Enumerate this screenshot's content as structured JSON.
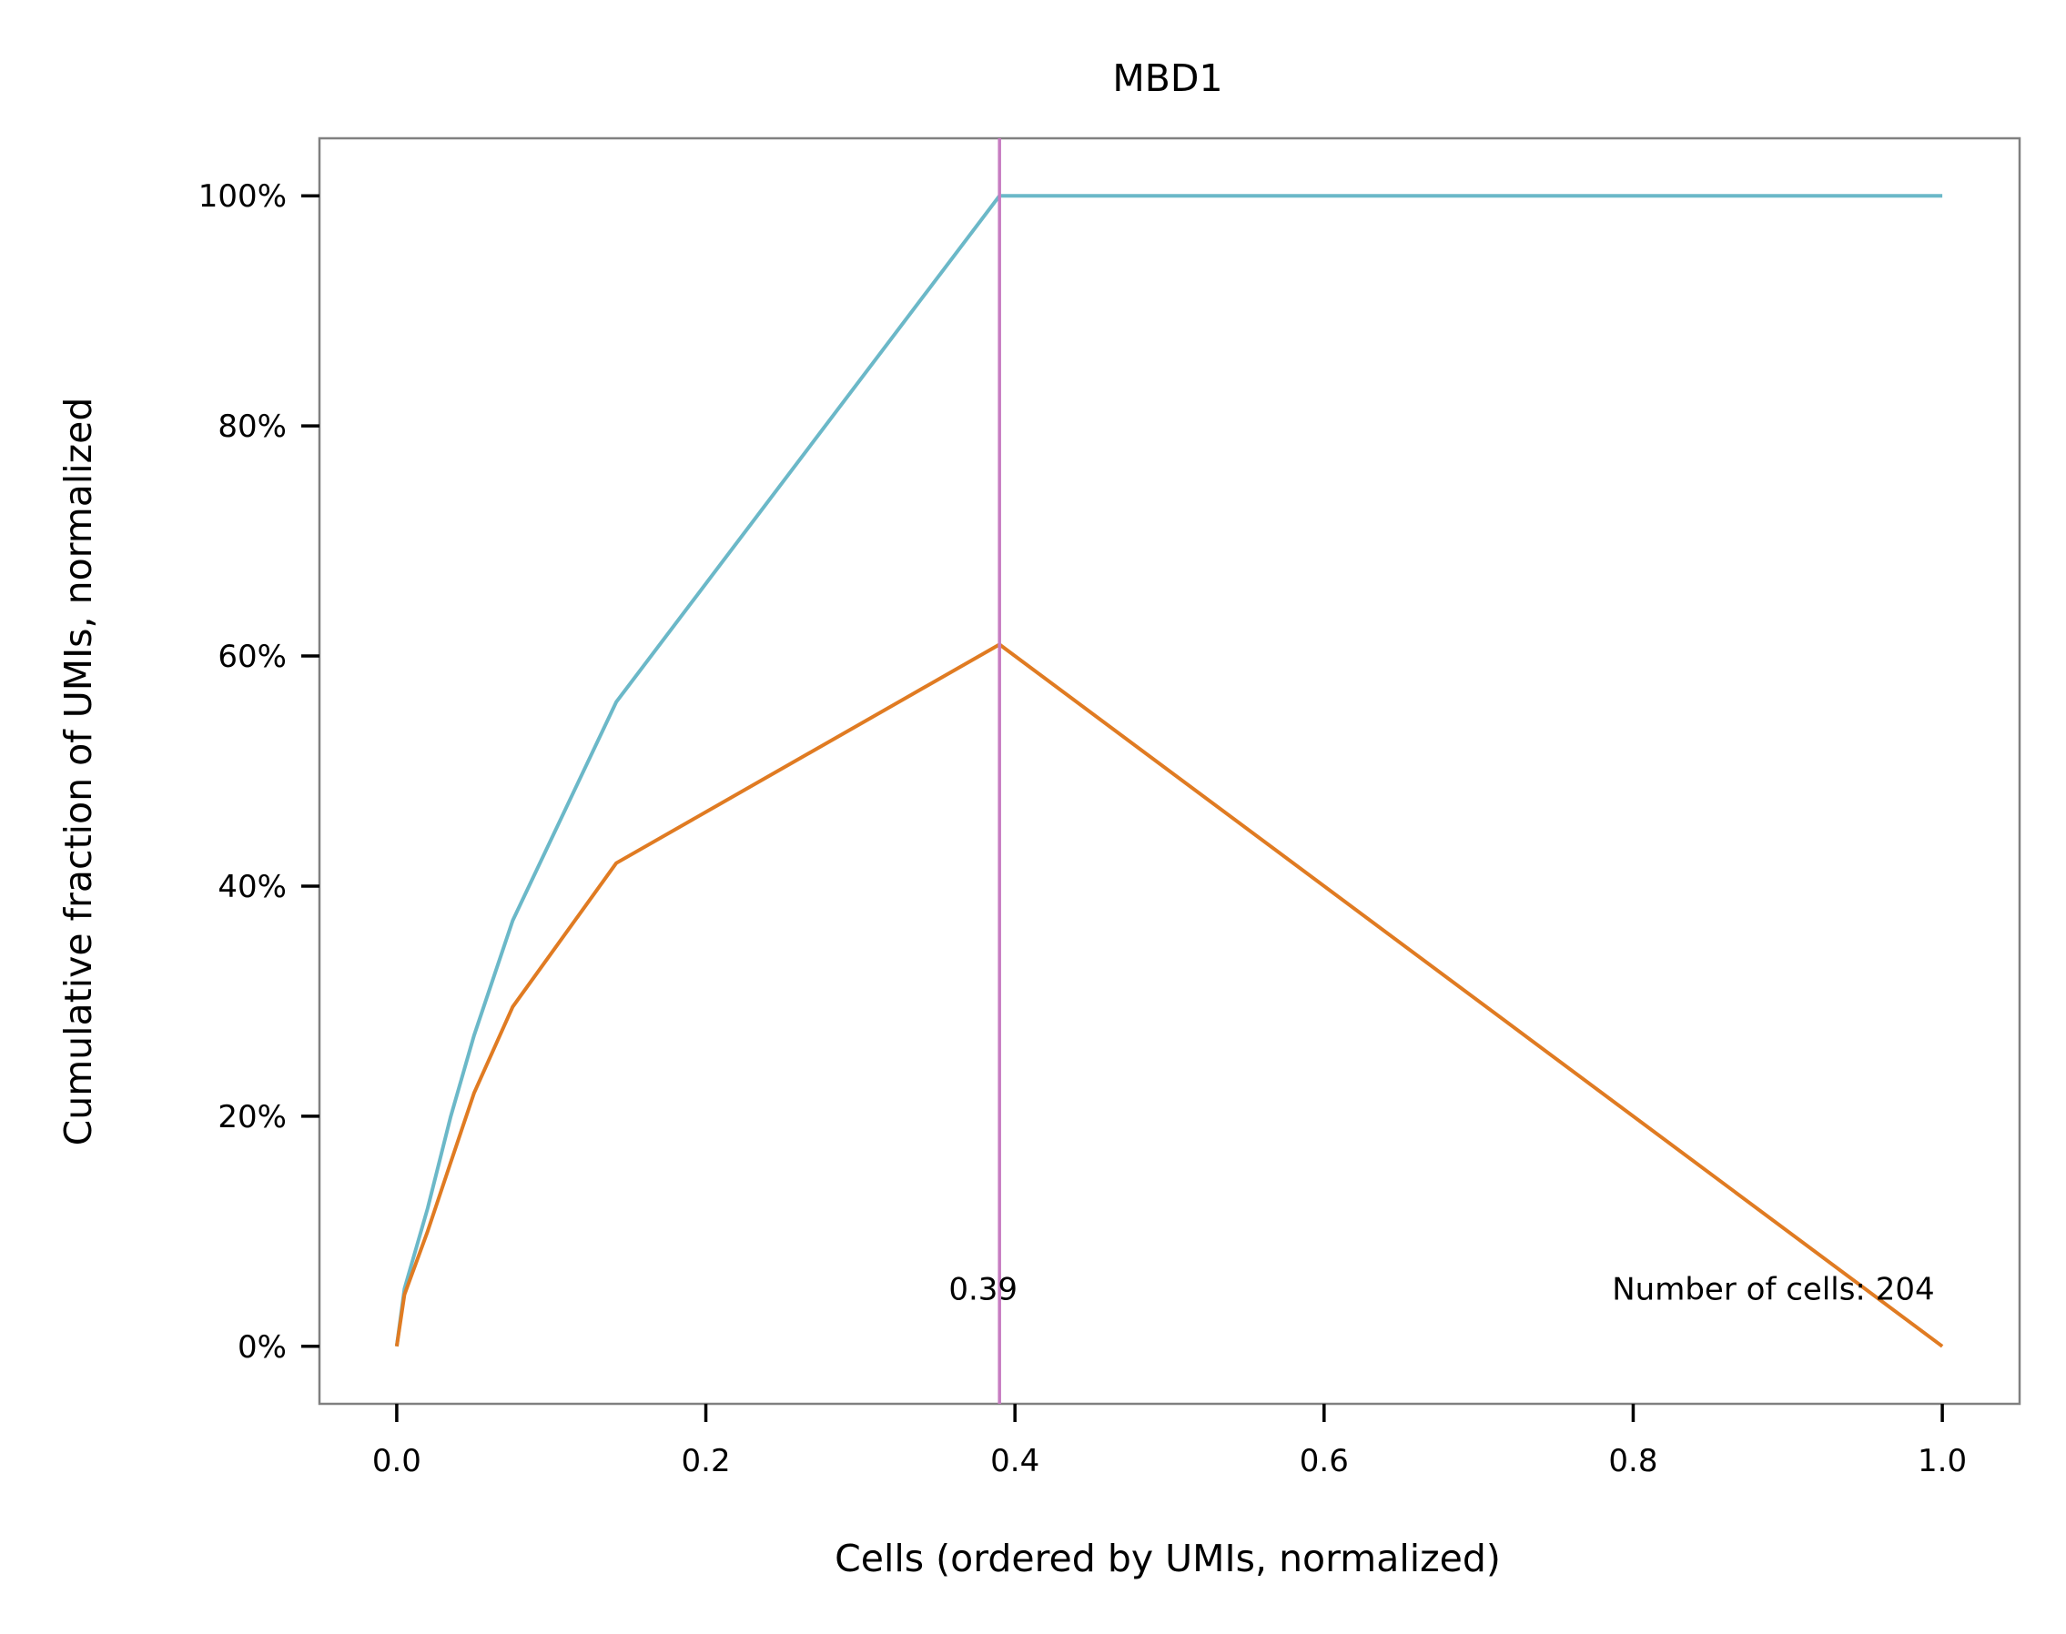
{
  "chart_data": {
    "type": "line",
    "title": "MBD1",
    "xlabel": "Cells (ordered by UMIs, normalized)",
    "ylabel": "Cumulative fraction of UMIs, normalized",
    "xlim": [
      -0.05,
      1.05
    ],
    "ylim": [
      -0.05,
      1.05
    ],
    "x_ticks": [
      0.0,
      0.2,
      0.4,
      0.6,
      0.8,
      1.0
    ],
    "x_tick_labels": [
      "0.0",
      "0.2",
      "0.4",
      "0.6",
      "0.8",
      "1.0"
    ],
    "y_ticks": [
      0.0,
      0.2,
      0.4,
      0.6,
      0.8,
      1.0
    ],
    "y_tick_labels": [
      "0%",
      "20%",
      "40%",
      "60%",
      "80%",
      "100%"
    ],
    "grid": false,
    "series": [
      {
        "color": "#6bb8c8",
        "x": [
          0.0,
          0.005,
          0.02,
          0.035,
          0.05,
          0.075,
          0.142,
          0.39,
          1.0
        ],
        "y": [
          0.0,
          0.05,
          0.12,
          0.2,
          0.27,
          0.37,
          0.56,
          1.0,
          1.0
        ]
      },
      {
        "color": "#e07b22",
        "x": [
          0.0,
          0.005,
          0.02,
          0.035,
          0.05,
          0.075,
          0.142,
          0.39,
          1.0
        ],
        "y": [
          0.0,
          0.045,
          0.1,
          0.16,
          0.22,
          0.295,
          0.42,
          0.61,
          0.0
        ]
      }
    ],
    "vline": {
      "x": 0.39,
      "color": "#c77cc1"
    },
    "annotations": {
      "vline_label": "0.39",
      "cells_label": "Number of cells: 204"
    }
  }
}
